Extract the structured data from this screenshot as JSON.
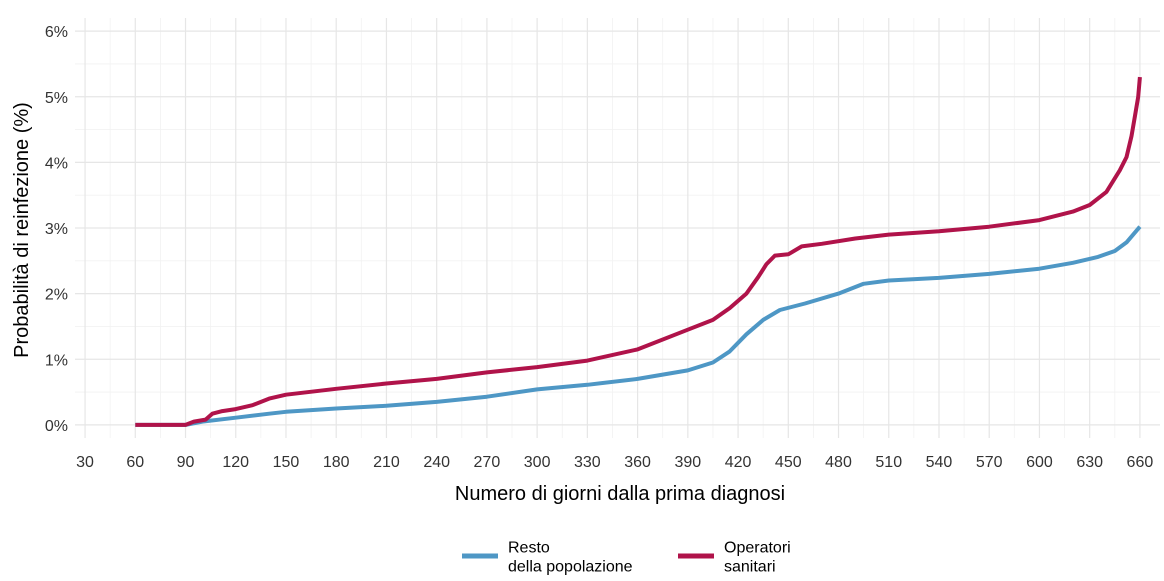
{
  "chart_data": {
    "type": "line",
    "title": "",
    "xlabel": "Numero di giorni dalla prima diagnosi",
    "ylabel": "Probabilità di reinfezione (%)",
    "xlim": [
      24,
      672
    ],
    "ylim": [
      -0.2,
      6.2
    ],
    "x_ticks": [
      30,
      60,
      90,
      120,
      150,
      180,
      210,
      240,
      270,
      300,
      330,
      360,
      390,
      420,
      450,
      480,
      510,
      540,
      570,
      600,
      630,
      660
    ],
    "y_ticks": [
      0,
      1,
      2,
      3,
      4,
      5,
      6
    ],
    "y_tick_labels": [
      "0%",
      "1%",
      "2%",
      "3%",
      "4%",
      "5%",
      "6%"
    ],
    "grid": true,
    "legend_position": "bottom",
    "series": [
      {
        "name": "Resto\ndella popolazione",
        "color": "#4e97c5",
        "points": [
          [
            60,
            0
          ],
          [
            90,
            0
          ],
          [
            100,
            0.05
          ],
          [
            120,
            0.11
          ],
          [
            140,
            0.17
          ],
          [
            150,
            0.2
          ],
          [
            180,
            0.25
          ],
          [
            210,
            0.29
          ],
          [
            240,
            0.35
          ],
          [
            270,
            0.43
          ],
          [
            300,
            0.54
          ],
          [
            330,
            0.61
          ],
          [
            360,
            0.7
          ],
          [
            390,
            0.83
          ],
          [
            405,
            0.95
          ],
          [
            415,
            1.12
          ],
          [
            425,
            1.38
          ],
          [
            435,
            1.6
          ],
          [
            445,
            1.75
          ],
          [
            460,
            1.85
          ],
          [
            480,
            2.0
          ],
          [
            495,
            2.15
          ],
          [
            510,
            2.2
          ],
          [
            540,
            2.24
          ],
          [
            570,
            2.3
          ],
          [
            600,
            2.38
          ],
          [
            620,
            2.47
          ],
          [
            635,
            2.56
          ],
          [
            645,
            2.65
          ],
          [
            652,
            2.78
          ],
          [
            656,
            2.9
          ],
          [
            660,
            3.02
          ]
        ]
      },
      {
        "name": "Operatori\nsanitari",
        "color": "#b0134a",
        "points": [
          [
            60,
            0
          ],
          [
            90,
            0
          ],
          [
            95,
            0.05
          ],
          [
            102,
            0.08
          ],
          [
            106,
            0.17
          ],
          [
            112,
            0.21
          ],
          [
            120,
            0.24
          ],
          [
            130,
            0.3
          ],
          [
            140,
            0.4
          ],
          [
            150,
            0.46
          ],
          [
            180,
            0.55
          ],
          [
            210,
            0.63
          ],
          [
            240,
            0.7
          ],
          [
            270,
            0.8
          ],
          [
            300,
            0.88
          ],
          [
            330,
            0.98
          ],
          [
            360,
            1.15
          ],
          [
            390,
            1.45
          ],
          [
            405,
            1.6
          ],
          [
            415,
            1.78
          ],
          [
            425,
            2.0
          ],
          [
            432,
            2.25
          ],
          [
            437,
            2.45
          ],
          [
            442,
            2.58
          ],
          [
            450,
            2.6
          ],
          [
            458,
            2.72
          ],
          [
            470,
            2.76
          ],
          [
            490,
            2.84
          ],
          [
            510,
            2.9
          ],
          [
            540,
            2.95
          ],
          [
            570,
            3.02
          ],
          [
            600,
            3.12
          ],
          [
            620,
            3.25
          ],
          [
            630,
            3.35
          ],
          [
            640,
            3.55
          ],
          [
            648,
            3.88
          ],
          [
            652,
            4.08
          ],
          [
            655,
            4.4
          ],
          [
            657,
            4.7
          ],
          [
            659,
            5.0
          ],
          [
            660,
            5.3
          ]
        ]
      }
    ]
  }
}
